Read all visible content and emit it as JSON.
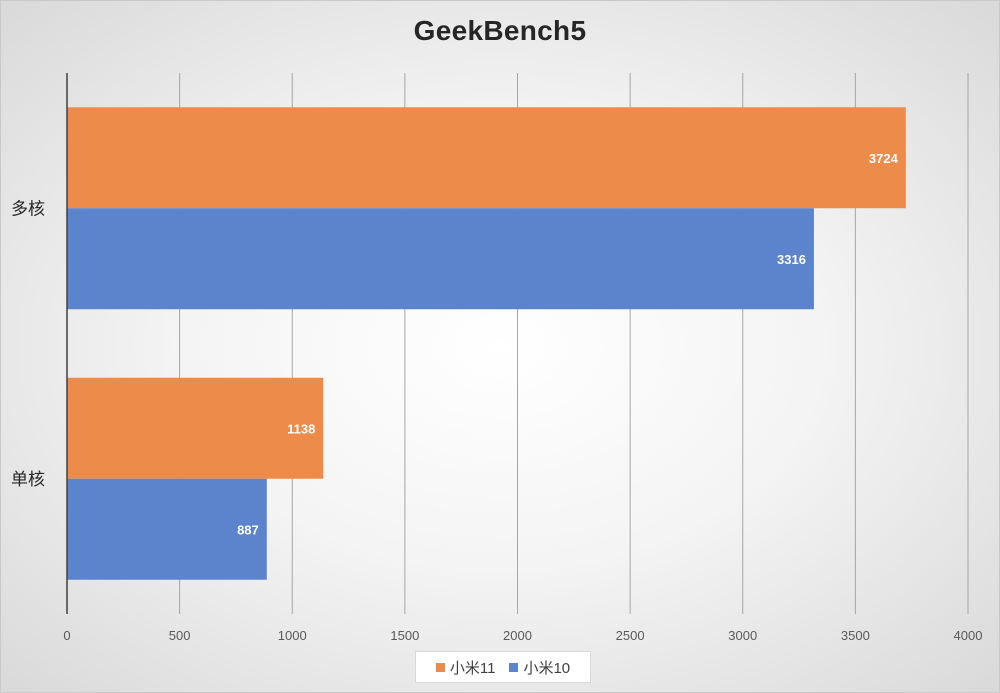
{
  "chart_data": {
    "type": "bar",
    "orientation": "horizontal",
    "title": "GeekBench5",
    "categories": [
      "多核",
      "单核"
    ],
    "series": [
      {
        "name": "小米11",
        "values": [
          3724,
          1138
        ],
        "color": "#ED8B4A"
      },
      {
        "name": "小米10",
        "values": [
          3316,
          887
        ],
        "color": "#5B84CC"
      }
    ],
    "xlim": [
      0,
      4000
    ],
    "xticks": [
      0,
      500,
      1000,
      1500,
      2000,
      2500,
      3000,
      3500,
      4000
    ],
    "xlabel": "",
    "ylabel": "",
    "grid": "vertical",
    "legend_position": "bottom",
    "data_labels": true
  }
}
